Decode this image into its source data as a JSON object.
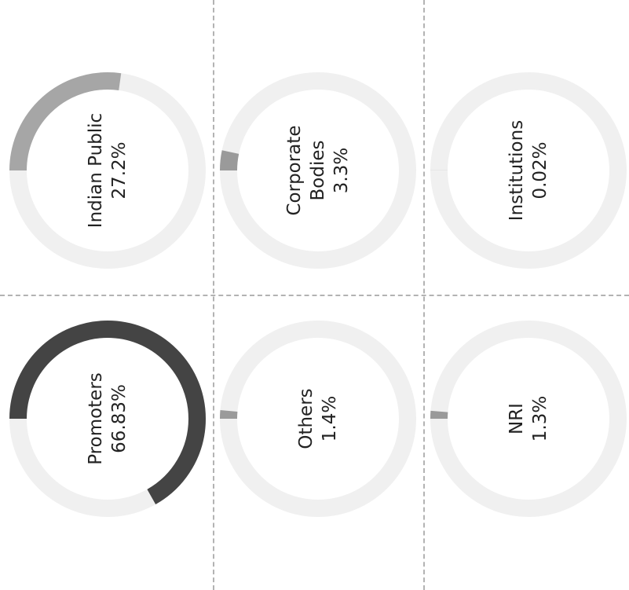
{
  "cards": [
    {
      "label": "Indian Public",
      "value": 27.2,
      "value_label": "27.2%",
      "color": "#a6a6a6"
    },
    {
      "label": "Corporate Bodies",
      "value": 3.3,
      "value_label": "3.3%",
      "color": "#9a9a9a"
    },
    {
      "label": "Institutions",
      "value": 0.02,
      "value_label": "0.02%",
      "color": "#9a9a9a"
    },
    {
      "label": "Promoters",
      "value": 66.83,
      "value_label": "66.83%",
      "color": "#444444"
    },
    {
      "label": "Others",
      "value": 1.4,
      "value_label": "1.4%",
      "color": "#9a9a9a"
    },
    {
      "label": "NRI",
      "value": 1.3,
      "value_label": "1.3%",
      "color": "#9a9a9a"
    }
  ]
}
